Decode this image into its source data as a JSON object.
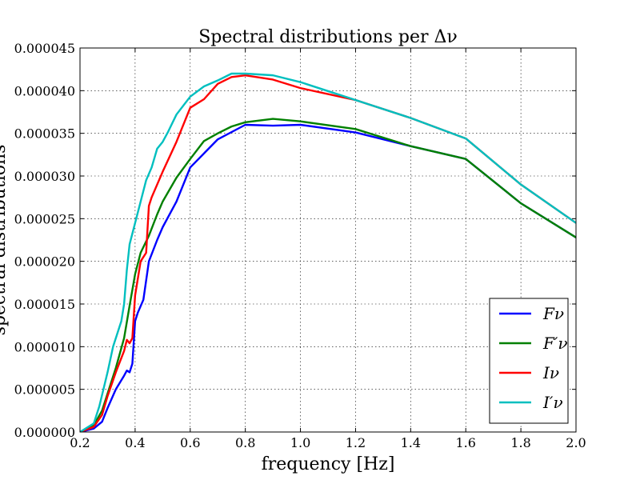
{
  "chart_data": {
    "type": "line",
    "title": "Spectral distributions per Δν",
    "xlabel": "frequency [Hz]",
    "ylabel": "spectral distributions",
    "xlim": [
      0.2,
      2.0
    ],
    "ylim": [
      0,
      4.5e-05
    ],
    "xticks": [
      "0.2",
      "0.4",
      "0.6",
      "0.8",
      "1.0",
      "1.2",
      "1.4",
      "1.6",
      "1.8",
      "2.0"
    ],
    "yticks": [
      "0.000000",
      "0.000005",
      "0.000010",
      "0.000015",
      "0.000020",
      "0.000025",
      "0.000030",
      "0.000035",
      "0.000040",
      "0.000045"
    ],
    "grid": true,
    "legend_position": "lower-right",
    "series": [
      {
        "name": "Fν",
        "color": "#0000ff",
        "x": [
          0.2,
          0.25,
          0.28,
          0.3,
          0.33,
          0.36,
          0.37,
          0.38,
          0.39,
          0.4,
          0.41,
          0.43,
          0.45,
          0.48,
          0.5,
          0.55,
          0.6,
          0.7,
          0.8,
          0.9,
          1.0,
          1.2,
          1.4,
          1.6,
          1.8,
          2.0
        ],
        "y": [
          0.0,
          4e-07,
          1.2e-06,
          2.8e-06,
          5e-06,
          6.6e-06,
          7.2e-06,
          7e-06,
          8e-06,
          1.3e-05,
          1.4e-05,
          1.55e-05,
          2e-05,
          2.25e-05,
          2.4e-05,
          2.7e-05,
          3.1e-05,
          3.43e-05,
          3.6e-05,
          3.59e-05,
          3.6e-05,
          3.51e-05,
          3.35e-05,
          3.2e-05,
          2.68e-05,
          2.28e-05
        ]
      },
      {
        "name": "F′ν",
        "color": "#008000",
        "x": [
          0.2,
          0.25,
          0.28,
          0.3,
          0.33,
          0.36,
          0.38,
          0.4,
          0.42,
          0.45,
          0.48,
          0.5,
          0.55,
          0.6,
          0.65,
          0.7,
          0.75,
          0.8,
          0.9,
          1.0,
          1.2,
          1.4,
          1.6,
          1.8,
          2.0
        ],
        "y": [
          0.0,
          8e-07,
          2.5e-06,
          4.5e-06,
          7.5e-06,
          1.1e-05,
          1.48e-05,
          1.85e-05,
          2.1e-05,
          2.3e-05,
          2.55e-05,
          2.7e-05,
          2.98e-05,
          3.2e-05,
          3.41e-05,
          3.5e-05,
          3.58e-05,
          3.63e-05,
          3.67e-05,
          3.64e-05,
          3.55e-05,
          3.35e-05,
          3.2e-05,
          2.68e-05,
          2.28e-05
        ]
      },
      {
        "name": "Iν",
        "color": "#ff0000",
        "x": [
          0.2,
          0.25,
          0.28,
          0.3,
          0.33,
          0.36,
          0.37,
          0.38,
          0.39,
          0.4,
          0.42,
          0.44,
          0.45,
          0.46,
          0.48,
          0.5,
          0.55,
          0.6,
          0.65,
          0.7,
          0.75,
          0.8,
          0.9,
          1.0,
          1.2,
          1.4,
          1.6,
          1.8,
          2.0
        ],
        "y": [
          0.0,
          6e-07,
          2e-06,
          4.2e-06,
          7e-06,
          9.5e-06,
          1.08e-05,
          1.04e-05,
          1.1e-05,
          1.6e-05,
          2e-05,
          2.1e-05,
          2.65e-05,
          2.75e-05,
          2.9e-05,
          3.05e-05,
          3.4e-05,
          3.8e-05,
          3.9e-05,
          4.08e-05,
          4.16e-05,
          4.18e-05,
          4.13e-05,
          4.03e-05,
          3.89e-05,
          3.68e-05,
          3.44e-05,
          2.9e-05,
          2.45e-05
        ]
      },
      {
        "name": "I′ν",
        "color": "#00bfbf",
        "x": [
          0.2,
          0.25,
          0.27,
          0.3,
          0.32,
          0.35,
          0.36,
          0.37,
          0.38,
          0.4,
          0.42,
          0.44,
          0.46,
          0.48,
          0.5,
          0.52,
          0.55,
          0.6,
          0.65,
          0.7,
          0.75,
          0.8,
          0.9,
          1.0,
          1.2,
          1.4,
          1.6,
          1.8,
          2.0
        ],
        "y": [
          0.0,
          1e-06,
          3e-06,
          7e-06,
          1e-05,
          1.3e-05,
          1.5e-05,
          1.9e-05,
          2.2e-05,
          2.45e-05,
          2.7e-05,
          2.95e-05,
          3.1e-05,
          3.32e-05,
          3.4e-05,
          3.52e-05,
          3.72e-05,
          3.93e-05,
          4.05e-05,
          4.12e-05,
          4.2e-05,
          4.2e-05,
          4.18e-05,
          4.1e-05,
          3.89e-05,
          3.68e-05,
          3.44e-05,
          2.9e-05,
          2.45e-05
        ]
      }
    ]
  }
}
